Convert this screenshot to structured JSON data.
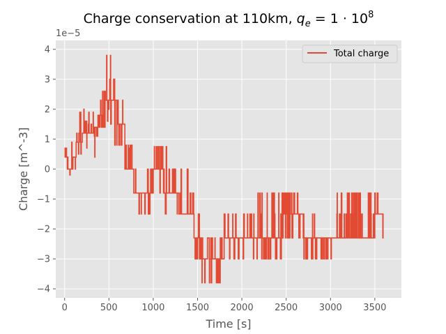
{
  "chart_data": {
    "type": "line",
    "title_main": "Charge conservation at 110km, ",
    "title_math_q": "q",
    "title_math_sub": "e",
    "title_math_eq": " = 1 · 10",
    "title_math_exp": "8",
    "xlabel": "Time [s]",
    "ylabel": "Charge [m^-3]",
    "y_offset_label": "1e−5",
    "xlim": [
      -100,
      3800
    ],
    "ylim": [
      -4.3,
      4.3
    ],
    "xticks": [
      0,
      500,
      1000,
      1500,
      2000,
      2500,
      3000,
      3500
    ],
    "xtick_labels": [
      "0",
      "500",
      "1000",
      "1500",
      "2000",
      "2500",
      "3000",
      "3500"
    ],
    "yticks": [
      4,
      3,
      2,
      1,
      0,
      -1,
      -2,
      -3,
      -4
    ],
    "ytick_labels": [
      "4",
      "3",
      "2",
      "1",
      "0",
      "−1",
      "−2",
      "−3",
      "−4"
    ],
    "grid": true,
    "legend_position": "top-right",
    "series": [
      {
        "name": "Total charge",
        "color": "#E24A33",
        "segments": [
          {
            "t0": 0,
            "t1": 30,
            "base": 0.4,
            "levels": [
              0.0,
              0.4,
              0.7
            ]
          },
          {
            "t0": 30,
            "t1": 80,
            "base": 0.0,
            "levels": [
              -0.2,
              0.0,
              0.2,
              0.4
            ]
          },
          {
            "t0": 80,
            "t1": 130,
            "base": 0.4,
            "levels": [
              0.0,
              0.4,
              0.8,
              0.9
            ]
          },
          {
            "t0": 130,
            "t1": 200,
            "base": 0.9,
            "levels": [
              0.5,
              0.9,
              1.2,
              1.9
            ]
          },
          {
            "t0": 200,
            "t1": 260,
            "base": 1.2,
            "levels": [
              0.7,
              1.2,
              1.6,
              2.0
            ]
          },
          {
            "t0": 260,
            "t1": 330,
            "base": 1.2,
            "levels": [
              0.8,
              1.2,
              1.5,
              1.9
            ]
          },
          {
            "t0": 330,
            "t1": 400,
            "base": 1.4,
            "levels": [
              0.4,
              1.1,
              1.4,
              1.8
            ]
          },
          {
            "t0": 400,
            "t1": 460,
            "base": 1.8,
            "levels": [
              1.4,
              1.8,
              2.3,
              2.6
            ]
          },
          {
            "t0": 460,
            "t1": 520,
            "base": 2.3,
            "levels": [
              1.6,
              2.0,
              2.3,
              3.0,
              3.8
            ]
          },
          {
            "t0": 520,
            "t1": 600,
            "base": 2.3,
            "levels": [
              0.8,
              1.5,
              2.3,
              3.0
            ]
          },
          {
            "t0": 600,
            "t1": 680,
            "base": 1.5,
            "levels": [
              0.8,
              1.5,
              2.3
            ]
          },
          {
            "t0": 680,
            "t1": 780,
            "base": 0.0,
            "levels": [
              0.0,
              0.7,
              0.8
            ]
          },
          {
            "t0": 780,
            "t1": 850,
            "base": -0.8,
            "levels": [
              -1.5,
              -0.8,
              0.0,
              -2.3
            ]
          },
          {
            "t0": 850,
            "t1": 1000,
            "base": -0.8,
            "levels": [
              -1.5,
              -0.8,
              0.0
            ]
          },
          {
            "t0": 1000,
            "t1": 1120,
            "base": 0.0,
            "levels": [
              -0.8,
              0.0,
              0.75
            ]
          },
          {
            "t0": 1120,
            "t1": 1200,
            "base": -0.8,
            "levels": [
              -1.5,
              -0.8,
              0.0,
              0.75
            ]
          },
          {
            "t0": 1200,
            "t1": 1290,
            "base": -0.8,
            "levels": [
              -1.5,
              -0.8,
              0.0
            ]
          },
          {
            "t0": 1290,
            "t1": 1460,
            "base": -1.5,
            "levels": [
              -1.5,
              -0.8,
              0.0
            ]
          },
          {
            "t0": 1460,
            "t1": 1550,
            "base": -2.3,
            "levels": [
              -3.0,
              -2.3,
              -1.5
            ]
          },
          {
            "t0": 1550,
            "t1": 1700,
            "base": -3.0,
            "levels": [
              -3.8,
              -3.0,
              -2.3
            ]
          },
          {
            "t0": 1700,
            "t1": 1800,
            "base": -3.0,
            "levels": [
              -3.8,
              -3.0,
              -2.3
            ]
          },
          {
            "t0": 1800,
            "t1": 1950,
            "base": -2.3,
            "levels": [
              -3.0,
              -2.3,
              -1.5
            ]
          },
          {
            "t0": 1950,
            "t1": 2120,
            "base": -2.3,
            "levels": [
              -3.0,
              -2.3,
              -1.5
            ]
          },
          {
            "t0": 2120,
            "t1": 2320,
            "base": -2.3,
            "levels": [
              -3.0,
              -2.3,
              -1.5,
              -0.8
            ]
          },
          {
            "t0": 2320,
            "t1": 2450,
            "base": -2.3,
            "levels": [
              -3.0,
              -2.3,
              -1.5,
              -0.8
            ]
          },
          {
            "t0": 2450,
            "t1": 2700,
            "base": -1.5,
            "levels": [
              -2.3,
              -1.5,
              -0.8
            ]
          },
          {
            "t0": 2700,
            "t1": 2850,
            "base": -2.3,
            "levels": [
              -3.0,
              -2.3,
              -1.5
            ]
          },
          {
            "t0": 2850,
            "t1": 3050,
            "base": -2.3,
            "levels": [
              -3.0,
              -2.3
            ]
          },
          {
            "t0": 3050,
            "t1": 3250,
            "base": -2.3,
            "levels": [
              -2.3,
              -1.5,
              -0.8
            ]
          },
          {
            "t0": 3250,
            "t1": 3500,
            "base": -2.3,
            "levels": [
              -2.3,
              -1.5,
              -0.8
            ]
          },
          {
            "t0": 3500,
            "t1": 3600,
            "base": -1.5,
            "levels": [
              -2.3,
              -1.5,
              -0.8
            ]
          }
        ]
      }
    ]
  }
}
